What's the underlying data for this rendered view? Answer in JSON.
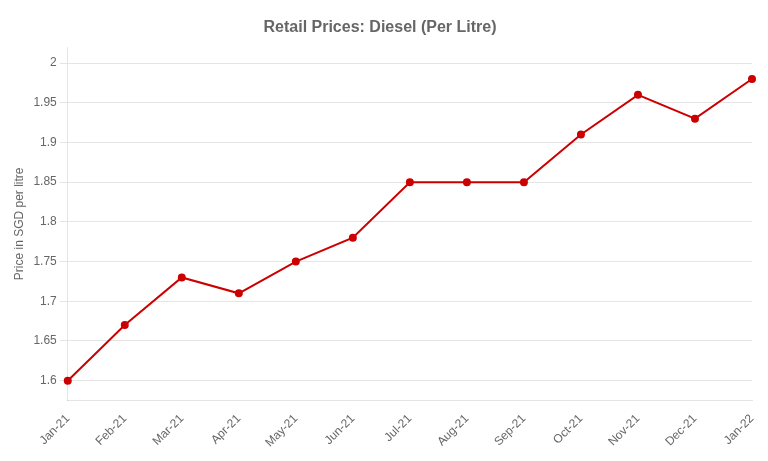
{
  "chart_data": {
    "type": "line",
    "title": "Retail Prices: Diesel (Per Litre)",
    "y_label": "Price in SGD per litre",
    "categories": [
      "Jan-21",
      "Feb-21",
      "Mar-21",
      "Apr-21",
      "May-21",
      "Jun-21",
      "Jul-21",
      "Aug-21",
      "Sep-21",
      "Oct-21",
      "Nov-21",
      "Dec-21",
      "Jan-22"
    ],
    "values": [
      1.6,
      1.67,
      1.73,
      1.71,
      1.75,
      1.78,
      1.85,
      1.85,
      1.85,
      1.91,
      1.96,
      1.93,
      1.98
    ],
    "color": "#cc0000",
    "marker": "circle",
    "ylim": [
      1.575,
      2.02
    ],
    "yticks": [
      1.6,
      1.65,
      1.7,
      1.75,
      1.8,
      1.85,
      1.9,
      1.95,
      2
    ],
    "grid": true
  }
}
